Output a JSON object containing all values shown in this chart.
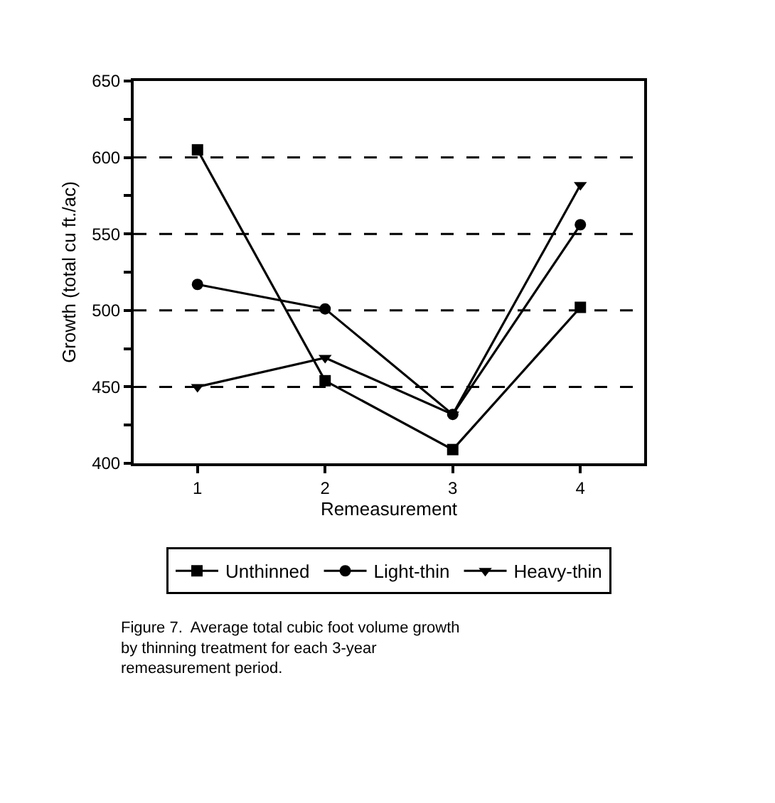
{
  "chart_data": {
    "type": "line",
    "xlabel": "Remeasurement",
    "ylabel": "Growth (total cu ft./ac)",
    "x": [
      1,
      2,
      3,
      4
    ],
    "xlim": [
      0.5,
      4.5
    ],
    "xticks": [
      1,
      2,
      3,
      4
    ],
    "ylim": [
      400,
      650
    ],
    "yticks": [
      400,
      {
        "value": 425,
        "label": null
      },
      450,
      {
        "value": 475,
        "label": null
      },
      500,
      {
        "value": 525,
        "label": null
      },
      550,
      {
        "value": 575,
        "label": null
      },
      600,
      {
        "value": 625,
        "label": null
      },
      650
    ],
    "grid": "y",
    "legend": "bottom",
    "line_style": "solid",
    "series": [
      {
        "name": "Unthinned",
        "color": "#000000",
        "marker": "square",
        "values": [
          605,
          454,
          409,
          502
        ]
      },
      {
        "name": "Light-thin",
        "color": "#000000",
        "marker": "circle",
        "values": [
          517,
          501,
          432,
          556
        ]
      },
      {
        "name": "Heavy-thin",
        "color": "#000000",
        "marker": "triangle",
        "values": [
          450,
          469,
          432,
          582
        ]
      }
    ],
    "annotations": [
      "Figure 7.  Average total cubic foot volume growth by thinning treatment for each 3-year remeasurement period."
    ]
  }
}
